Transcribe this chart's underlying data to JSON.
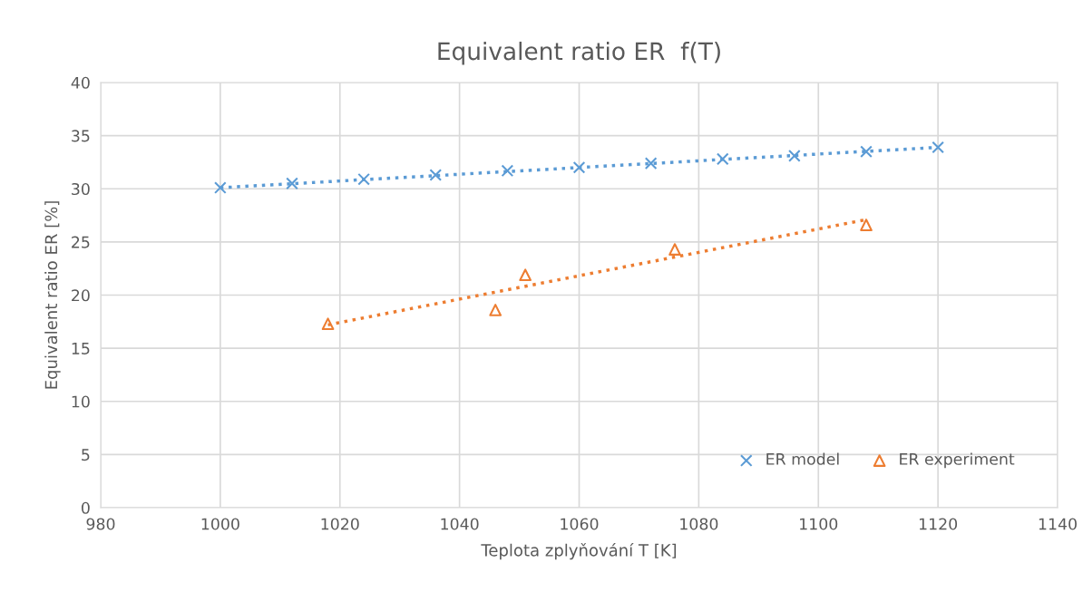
{
  "chart_data": {
    "type": "scatter",
    "title": "Equivalent ratio ER  f(T)",
    "xlabel": "Teplota zplyňování T [K]",
    "ylabel": "Equivalent ratio ER [%]",
    "xlim": [
      980,
      1140
    ],
    "xticks": [
      980,
      1000,
      1020,
      1040,
      1060,
      1080,
      1100,
      1120,
      1140
    ],
    "ylim": [
      0,
      40
    ],
    "yticks": [
      0,
      5,
      10,
      15,
      20,
      25,
      30,
      35,
      40
    ],
    "grid": true,
    "legend": "bottom right",
    "series": [
      {
        "name": "ER model",
        "marker": "cross",
        "color": "#5b9bd5",
        "x": [
          1000,
          1012,
          1024,
          1036,
          1048,
          1060,
          1072,
          1084,
          1096,
          1108,
          1120
        ],
        "values": [
          30.1,
          30.5,
          30.9,
          31.3,
          31.7,
          32.0,
          32.4,
          32.8,
          33.1,
          33.5,
          33.9
        ]
      },
      {
        "name": "ER experiment",
        "marker": "triangle",
        "color": "#ed7d31",
        "x": [
          1018,
          1046,
          1051,
          1076,
          1108
        ],
        "values": [
          17.3,
          18.6,
          21.9,
          24.3,
          26.6
        ]
      },
      {
        "type": "line",
        "line_style": "dotted",
        "marker": "none",
        "color": "#5b9bd5",
        "x": [
          1000,
          1120
        ],
        "values": [
          30.1,
          33.9
        ]
      },
      {
        "type": "line",
        "line_style": "dotted",
        "marker": "none",
        "color": "#ed7d31",
        "x": [
          1018,
          1108
        ],
        "values": [
          17.2,
          27.1
        ]
      }
    ]
  }
}
